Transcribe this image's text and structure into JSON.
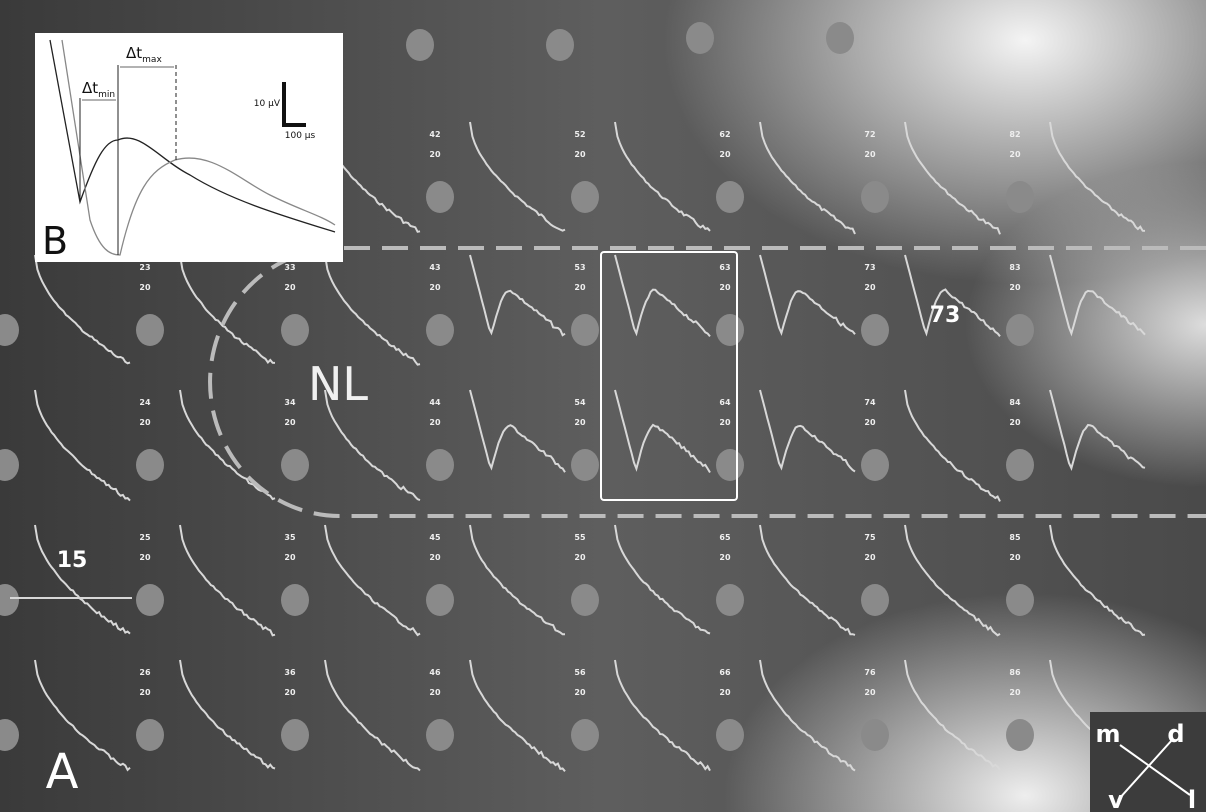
{
  "panel_a": {
    "label": "A",
    "region_label": "NL",
    "callouts": [
      "73",
      "15"
    ],
    "electrode_rows": [
      [
        [
          "42",
          "20"
        ],
        [
          "52",
          "20"
        ],
        [
          "62",
          "20"
        ],
        [
          "72",
          "20"
        ],
        [
          "82",
          "20"
        ]
      ],
      [
        [
          "23",
          "20"
        ],
        [
          "33",
          "20"
        ],
        [
          "43",
          "20"
        ],
        [
          "53",
          "20"
        ],
        [
          "63",
          "20"
        ],
        [
          "73",
          "20"
        ],
        [
          "83",
          "20"
        ]
      ],
      [
        [
          "24",
          "20"
        ],
        [
          "34",
          "20"
        ],
        [
          "44",
          "20"
        ],
        [
          "54",
          "20"
        ],
        [
          "64",
          "20"
        ],
        [
          "74",
          "20"
        ],
        [
          "84",
          "20"
        ]
      ],
      [
        [
          "25",
          "20"
        ],
        [
          "35",
          "20"
        ],
        [
          "45",
          "20"
        ],
        [
          "55",
          "20"
        ],
        [
          "65",
          "20"
        ],
        [
          "75",
          "20"
        ],
        [
          "85",
          "20"
        ]
      ],
      [
        [
          "26",
          "20"
        ],
        [
          "36",
          "20"
        ],
        [
          "46",
          "20"
        ],
        [
          "56",
          "20"
        ],
        [
          "66",
          "20"
        ],
        [
          "76",
          "20"
        ],
        [
          "86",
          "20"
        ]
      ]
    ]
  },
  "panel_b": {
    "label": "B",
    "dt_min": {
      "symbol": "Δt",
      "sub": "min"
    },
    "dt_max": {
      "symbol": "Δt",
      "sub": "max"
    },
    "scale_y": "10 µV",
    "scale_x": "100 µs"
  },
  "orientation": {
    "m": "m",
    "d": "d",
    "v": "v",
    "l": "l"
  }
}
